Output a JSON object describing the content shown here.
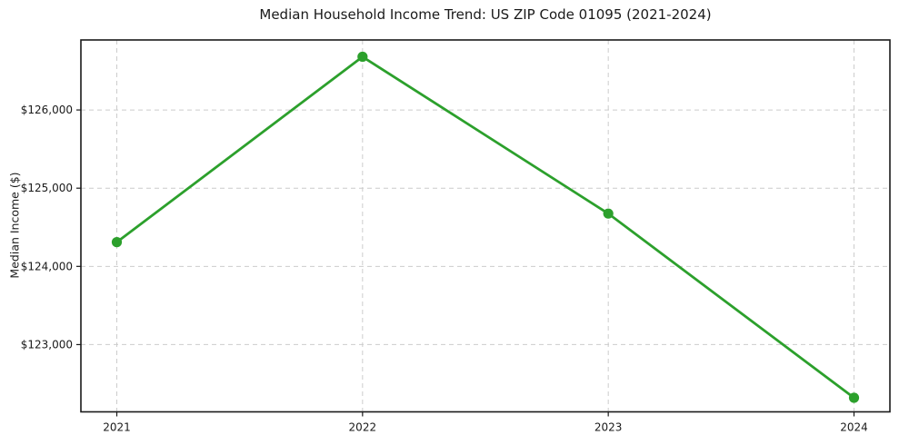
{
  "page": {
    "background": "#ffffff"
  },
  "chart_data": {
    "type": "line",
    "title": "Median Household Income Trend: US ZIP Code 01095 (2021-2024)",
    "xlabel": "",
    "ylabel": "Median Income ($)",
    "categories": [
      "2021",
      "2022",
      "2023",
      "2024"
    ],
    "series": [
      {
        "values": [
          124310,
          126680,
          124675,
          122320
        ],
        "color": "#2ca02c",
        "marker": "circle"
      }
    ],
    "ylim": [
      122140,
      126895
    ],
    "yticks": [
      {
        "value": 123000,
        "label": "$123,000"
      },
      {
        "value": 124000,
        "label": "$124,000"
      },
      {
        "value": 125000,
        "label": "$125,000"
      },
      {
        "value": 126000,
        "label": "$126,000"
      }
    ],
    "grid": true,
    "grid_style": "dashed",
    "grid_color": "#cccccc",
    "axis_color": "#1a1a1a",
    "legend_position": "none",
    "background": "#ffffff"
  }
}
